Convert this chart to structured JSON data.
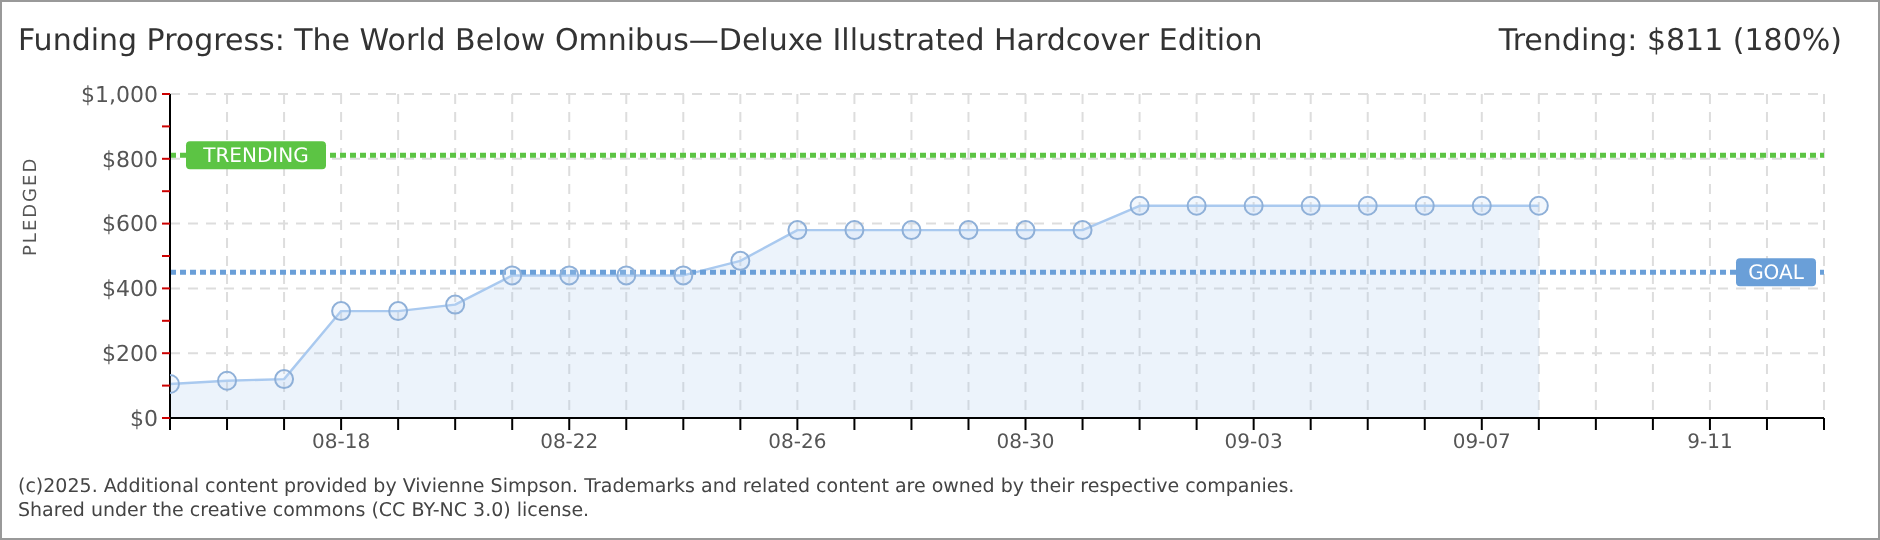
{
  "chart_data": {
    "type": "area",
    "title": "Funding Progress: The World Below Omnibus—Deluxe Illustrated Hardcover Edition",
    "subtitle": "Trending: $811 (180%)",
    "ylabel": "PLEDGED",
    "categories": [
      null,
      null,
      null,
      "08-18",
      null,
      null,
      null,
      "08-22",
      null,
      null,
      null,
      "08-26",
      null,
      null,
      null,
      "08-30",
      null,
      null,
      null,
      "09-03",
      null,
      null,
      null,
      "09-07",
      null,
      null,
      null,
      "9-11",
      null,
      null
    ],
    "series": [
      {
        "color": "#a9c9ef",
        "values": [
          105,
          115,
          120,
          330,
          330,
          350,
          440,
          440,
          440,
          440,
          485,
          580,
          580,
          580,
          580,
          580,
          580,
          655,
          655,
          655,
          655,
          655,
          655,
          655,
          655,
          null,
          null,
          null,
          null,
          null
        ]
      }
    ],
    "ylim": [
      0,
      1000
    ],
    "yticks": [
      {
        "value": 0,
        "label": "$0"
      },
      {
        "value": 100,
        "label": null
      },
      {
        "value": 200,
        "label": "$200"
      },
      {
        "value": 300,
        "label": null
      },
      {
        "value": 400,
        "label": "$400"
      },
      {
        "value": 500,
        "label": null
      },
      {
        "value": 600,
        "label": "$600"
      },
      {
        "value": 700,
        "label": null
      },
      {
        "value": 800,
        "label": "$800"
      },
      {
        "value": 900,
        "label": null
      },
      {
        "value": 1000,
        "label": "$1,000"
      }
    ],
    "ref_lines": [
      {
        "axis": "y",
        "value": 811,
        "label": "TRENDING",
        "color": "#5cc444",
        "line_style": "dotted"
      },
      {
        "axis": "y",
        "value": 450,
        "label": "GOAL",
        "color": "#6a9fd8",
        "line_style": "dotted"
      }
    ],
    "grid": true,
    "marker": "circle",
    "line_style": "solid",
    "annotations": [
      "(c)2025. Additional content provided by Vivienne Simpson. Trademarks and related content are owned by their respective companies.",
      "Shared under the creative commons (CC BY-NC 3.0) license."
    ]
  }
}
